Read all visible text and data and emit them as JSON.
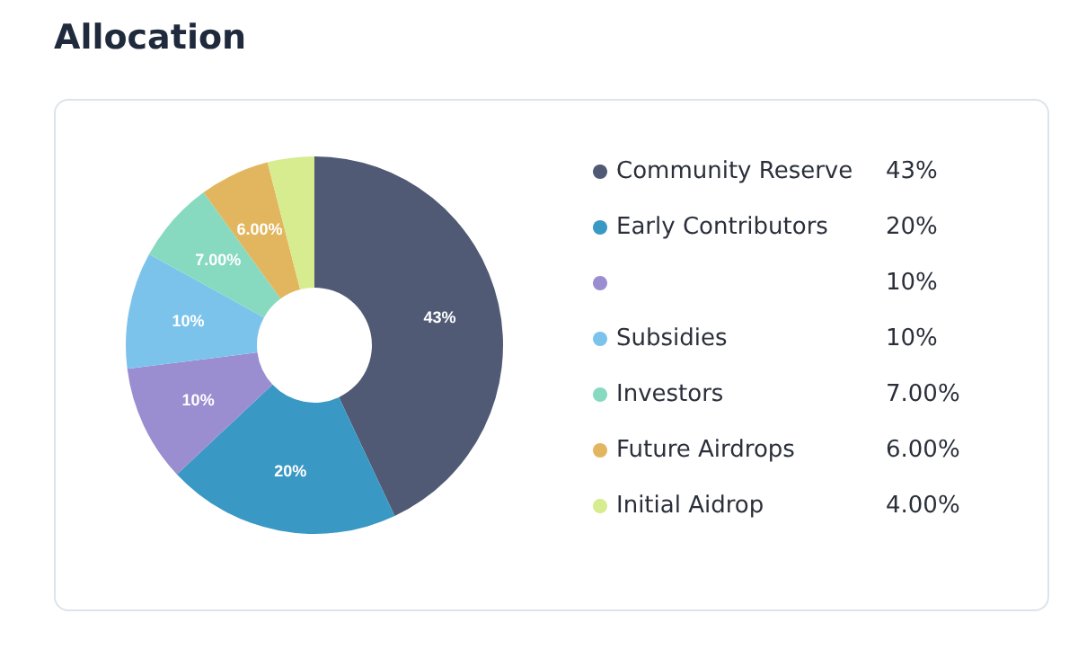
{
  "chart_data": {
    "type": "donut",
    "title": "Allocation",
    "categories": [
      "Community Reserve",
      "Early Contributors",
      null,
      "Subsidies",
      "Investors",
      "Future Airdrops",
      "Initial Aidrop"
    ],
    "values": [
      43,
      20,
      10,
      10,
      7.0,
      6.0,
      4.0
    ],
    "value_labels": [
      "43%",
      "20%",
      "10%",
      "10%",
      "7.00%",
      "6.00%",
      "4.00%"
    ],
    "colors": [
      "#505a75",
      "#3a98c4",
      "#9a8ed0",
      "#7cc3ec",
      "#87dac0",
      "#e2b65e",
      "#d7eb8f"
    ],
    "legend": "right"
  }
}
